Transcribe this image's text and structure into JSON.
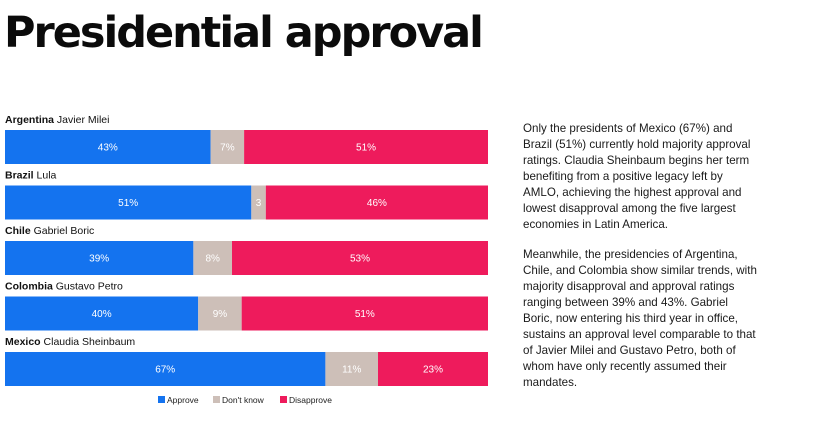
{
  "page": {
    "title": "Presidential approval"
  },
  "chart_data": {
    "type": "bar",
    "orientation": "horizontal",
    "stacked": true,
    "rows": [
      {
        "country": "Argentina",
        "leader": "Javier Milei",
        "approve": 43,
        "dont_know": 7,
        "disapprove": 51,
        "labels": [
          "43%",
          "7%",
          "51%"
        ]
      },
      {
        "country": "Brazil",
        "leader": "Lula",
        "approve": 51,
        "dont_know": 3,
        "disapprove": 46,
        "labels": [
          "51%",
          "3",
          "46%"
        ]
      },
      {
        "country": "Chile",
        "leader": "Gabriel Boric",
        "approve": 39,
        "dont_know": 8,
        "disapprove": 53,
        "labels": [
          "39%",
          "8%",
          "53%"
        ]
      },
      {
        "country": "Colombia",
        "leader": "Gustavo Petro",
        "approve": 40,
        "dont_know": 9,
        "disapprove": 51,
        "labels": [
          "40%",
          "9%",
          "51%"
        ]
      },
      {
        "country": "Mexico",
        "leader": "Claudia Sheinbaum",
        "approve": 67,
        "dont_know": 11,
        "disapprove": 23,
        "labels": [
          "67%",
          "11%",
          "23%"
        ]
      }
    ],
    "series": [
      {
        "key": "approve",
        "name": "Approve",
        "color": "#1473ef"
      },
      {
        "key": "dont_know",
        "name": "Don't know",
        "color": "#cdbfb8"
      },
      {
        "key": "disapprove",
        "name": "Disapprove",
        "color": "#ee1b5c"
      }
    ],
    "legend_position": "bottom"
  },
  "commentary": {
    "paragraphs": [
      "Only the presidents of Mexico (67%) and Brazil (51%) currently hold majority approval ratings. Claudia Sheinbaum begins her term benefiting from a positive legacy left by AMLO, achieving the highest approval and lowest disapproval among the five largest economies in Latin America.",
      "Meanwhile, the presidencies of Argentina, Chile, and Colombia show similar trends, with majority disapproval and approval ratings ranging between 39% and 43%. Gabriel Boric, now entering his third year in office, sustains an approval level comparable to that of Javier Milei and Gustavo Petro, both of whom have only recently assumed their mandates."
    ]
  }
}
